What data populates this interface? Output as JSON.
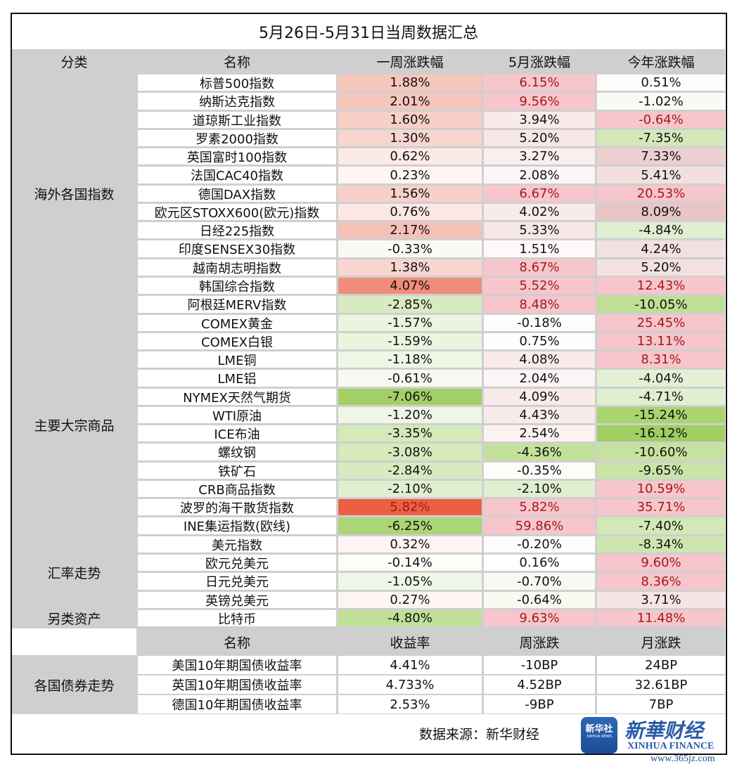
{
  "title": "5月26日-5月31日当周数据汇总",
  "colors": {
    "header_gray": "#d0cfd0",
    "red_text": "#a31a1a",
    "normal_text": "#111111"
  },
  "header": [
    "分类",
    "名称",
    "一周涨跌幅",
    "5月涨跌幅",
    "今年涨跌幅"
  ],
  "categories": [
    {
      "label": "海外各国指数",
      "rows": 13
    },
    {
      "label": "主要大宗商品",
      "rows": 12
    },
    {
      "label": "汇率走势",
      "rows": 4
    },
    {
      "label": "另类资产",
      "rows": 1
    }
  ],
  "rows": [
    {
      "name": "标普500指数",
      "cells": [
        {
          "v": "1.88%",
          "bg": "#f6c6bc"
        },
        {
          "v": "6.15%",
          "bg": "#f6c6cc",
          "red": true
        },
        {
          "v": "0.51%",
          "bg": "#fefdfc"
        }
      ]
    },
    {
      "name": "纳斯达克指数",
      "cells": [
        {
          "v": "2.01%",
          "bg": "#f6c6bc"
        },
        {
          "v": "9.56%",
          "bg": "#f6c6cc",
          "red": true
        },
        {
          "v": "-1.02%",
          "bg": "#f8fbf4"
        }
      ]
    },
    {
      "name": "道琼斯工业指数",
      "cells": [
        {
          "v": "1.60%",
          "bg": "#f7d0c8"
        },
        {
          "v": "3.94%",
          "bg": "#f8ebea"
        },
        {
          "v": "-0.64%",
          "bg": "#f6c6cc",
          "red": true
        }
      ]
    },
    {
      "name": "罗素2000指数",
      "cells": [
        {
          "v": "1.30%",
          "bg": "#f8d6cf"
        },
        {
          "v": "5.20%",
          "bg": "#f7e8e7"
        },
        {
          "v": "-7.35%",
          "bg": "#d3e9b9"
        }
      ]
    },
    {
      "name": "英国富时100指数",
      "cells": [
        {
          "v": "0.62%",
          "bg": "#fbeae6"
        },
        {
          "v": "3.27%",
          "bg": "#f9efee"
        },
        {
          "v": "7.33%",
          "bg": "#ecd0cf"
        }
      ]
    },
    {
      "name": "法国CAC40指数",
      "cells": [
        {
          "v": "0.23%",
          "bg": "#fdf6f5"
        },
        {
          "v": "2.08%",
          "bg": "#fbf5f5"
        },
        {
          "v": "5.41%",
          "bg": "#f2e0df"
        }
      ]
    },
    {
      "name": "德国DAX指数",
      "cells": [
        {
          "v": "1.56%",
          "bg": "#f7d1c9"
        },
        {
          "v": "6.67%",
          "bg": "#f6c6cc",
          "red": true
        },
        {
          "v": "20.53%",
          "bg": "#f6c6cc",
          "red": true
        }
      ]
    },
    {
      "name": "欧元区STOXX600(欧元)指数",
      "cells": [
        {
          "v": "0.76%",
          "bg": "#fbe8e4"
        },
        {
          "v": "4.02%",
          "bg": "#f8ebea"
        },
        {
          "v": "8.09%",
          "bg": "#e9c6c5"
        }
      ]
    },
    {
      "name": "日经225指数",
      "cells": [
        {
          "v": "2.17%",
          "bg": "#f5c2b7"
        },
        {
          "v": "5.33%",
          "bg": "#f7e8e7"
        },
        {
          "v": "-4.84%",
          "bg": "#e0efcf"
        }
      ]
    },
    {
      "name": "印度SENSEX30指数",
      "cells": [
        {
          "v": "-0.33%",
          "bg": "#f8fbf4"
        },
        {
          "v": "1.51%",
          "bg": "#fdf9f8"
        },
        {
          "v": "4.24%",
          "bg": "#f3e1e0"
        }
      ]
    },
    {
      "name": "越南胡志明指数",
      "cells": [
        {
          "v": "1.38%",
          "bg": "#f8d6cf"
        },
        {
          "v": "8.67%",
          "bg": "#f6c6cc",
          "red": true
        },
        {
          "v": "5.20%",
          "bg": "#f3e1e0"
        }
      ]
    },
    {
      "name": "韩国综合指数",
      "cells": [
        {
          "v": "4.07%",
          "bg": "#f08c78"
        },
        {
          "v": "5.52%",
          "bg": "#f6c6cc",
          "red": true
        },
        {
          "v": "12.43%",
          "bg": "#f6c6cc",
          "red": true
        }
      ]
    },
    {
      "name": "阿根廷MERV指数",
      "cells": [
        {
          "v": "-2.85%",
          "bg": "#d8ebc0"
        },
        {
          "v": "8.48%",
          "bg": "#f6c6cc",
          "red": true
        },
        {
          "v": "-10.05%",
          "bg": "#c0df95"
        }
      ]
    },
    {
      "name": "COMEX黄金",
      "cells": [
        {
          "v": "-1.57%",
          "bg": "#eaf4de"
        },
        {
          "v": "-0.18%",
          "bg": "#fdfefc"
        },
        {
          "v": "25.45%",
          "bg": "#f6c6cc",
          "red": true
        }
      ]
    },
    {
      "name": "COMEX白银",
      "cells": [
        {
          "v": "-1.59%",
          "bg": "#eaf4de"
        },
        {
          "v": "0.75%",
          "bg": "#fefdfd"
        },
        {
          "v": "13.11%",
          "bg": "#f6c6cc",
          "red": true
        }
      ]
    },
    {
      "name": "LME铜",
      "cells": [
        {
          "v": "-1.18%",
          "bg": "#eef6e6"
        },
        {
          "v": "4.08%",
          "bg": "#f8ebea"
        },
        {
          "v": "8.31%",
          "bg": "#f6c6cc",
          "red": true
        }
      ]
    },
    {
      "name": "LME铝",
      "cells": [
        {
          "v": "-0.61%",
          "bg": "#f6faf1"
        },
        {
          "v": "2.04%",
          "bg": "#fbf5f5"
        },
        {
          "v": "-4.04%",
          "bg": "#e3f0d4"
        }
      ]
    },
    {
      "name": "NYMEX天然气期货",
      "cells": [
        {
          "v": "-7.06%",
          "bg": "#a3d066"
        },
        {
          "v": "4.09%",
          "bg": "#f8ebea"
        },
        {
          "v": "-4.71%",
          "bg": "#e0efcf"
        }
      ]
    },
    {
      "name": "WTI原油",
      "cells": [
        {
          "v": "-1.20%",
          "bg": "#eef6e6"
        },
        {
          "v": "4.43%",
          "bg": "#f8ebea"
        },
        {
          "v": "-15.24%",
          "bg": "#a9d46f"
        }
      ]
    },
    {
      "name": "ICE布油",
      "cells": [
        {
          "v": "-3.35%",
          "bg": "#d4eaba"
        },
        {
          "v": "2.54%",
          "bg": "#faf3f2"
        },
        {
          "v": "-16.12%",
          "bg": "#a0cf62"
        }
      ]
    },
    {
      "name": "螺纹钢",
      "cells": [
        {
          "v": "-3.08%",
          "bg": "#d6eabc"
        },
        {
          "v": "-4.36%",
          "bg": "#c3e19a"
        },
        {
          "v": "-10.60%",
          "bg": "#c6e29f"
        }
      ]
    },
    {
      "name": "铁矿石",
      "cells": [
        {
          "v": "-2.84%",
          "bg": "#d8ebc0"
        },
        {
          "v": "-0.35%",
          "bg": "#fbfdf9"
        },
        {
          "v": "-9.65%",
          "bg": "#c9e4a5"
        }
      ]
    },
    {
      "name": "CRB商品指数",
      "cells": [
        {
          "v": "-2.10%",
          "bg": "#e0efcf"
        },
        {
          "v": "-2.10%",
          "bg": "#e0efcf"
        },
        {
          "v": "10.59%",
          "bg": "#f6c6cc",
          "red": true
        }
      ]
    },
    {
      "name": "波罗的海干散货指数",
      "cells": [
        {
          "v": "5.82%",
          "bg": "#ec5f42",
          "red": true
        },
        {
          "v": "5.82%",
          "bg": "#f6c6cc",
          "red": true
        },
        {
          "v": "35.71%",
          "bg": "#f6c6cc",
          "red": true
        }
      ]
    },
    {
      "name": "INE集运指数(欧线)",
      "cells": [
        {
          "v": "-6.25%",
          "bg": "#acd575"
        },
        {
          "v": "59.86%",
          "bg": "#f6c6cc",
          "red": true
        },
        {
          "v": "-7.40%",
          "bg": "#d2e8b6"
        }
      ]
    },
    {
      "name": "美元指数",
      "cells": [
        {
          "v": "0.32%",
          "bg": "#fdf5f4"
        },
        {
          "v": "-0.20%",
          "bg": "#fdfefc"
        },
        {
          "v": "-8.34%",
          "bg": "#cde6ae"
        }
      ]
    },
    {
      "name": "欧元兑美元",
      "cells": [
        {
          "v": "-0.14%",
          "bg": "#fbfdf9"
        },
        {
          "v": "0.16%",
          "bg": "#ffffff"
        },
        {
          "v": "9.60%",
          "bg": "#f6c6cc",
          "red": true
        }
      ]
    },
    {
      "name": "日元兑美元",
      "cells": [
        {
          "v": "-1.05%",
          "bg": "#eff7e7"
        },
        {
          "v": "-0.70%",
          "bg": "#f6faf1"
        },
        {
          "v": "8.36%",
          "bg": "#f6c6cc",
          "red": true
        }
      ]
    },
    {
      "name": "英镑兑美元",
      "cells": [
        {
          "v": "0.27%",
          "bg": "#fdf5f4"
        },
        {
          "v": "-0.64%",
          "bg": "#f6faf1"
        },
        {
          "v": "3.71%",
          "bg": "#f5e6e5"
        }
      ]
    },
    {
      "name": "比特币",
      "cells": [
        {
          "v": "-4.80%",
          "bg": "#bfe096"
        },
        {
          "v": "9.63%",
          "bg": "#f6c6cc",
          "red": true
        },
        {
          "v": "11.48%",
          "bg": "#f6c6cc",
          "red": true
        }
      ]
    }
  ],
  "bonds": {
    "header": [
      "名称",
      "收益率",
      "周涨跌",
      "月涨跌"
    ],
    "category": "各国债券走势",
    "rows": [
      [
        "美国10年期国债收益率",
        "4.41%",
        "-10BP",
        "24BP"
      ],
      [
        "英国10年期国债收益率",
        "4.733%",
        "4.52BP",
        "32.61BP"
      ],
      [
        "德国10年期国债收益率",
        "2.53%",
        "-9BP",
        "7BP"
      ]
    ]
  },
  "footer": {
    "source": "数据来源：新华财经",
    "logo_box_cn": "新华社",
    "logo_box_en": "XINHUA NEWS",
    "logo_cn": "新華财经",
    "logo_en": "XINHUA FINANCE",
    "watermark": "www.365jz.com"
  }
}
